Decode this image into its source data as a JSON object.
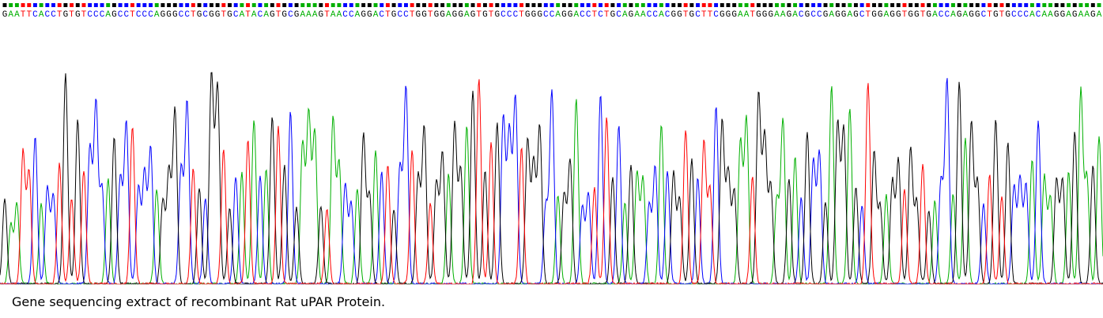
{
  "chart_data": {
    "type": "line",
    "caption": "Gene sequencing extract of recombinant Rat uPAR Protein.",
    "sequence": "GAATTCACCTGTGTCCCAGCCTCCCAGGGCCTGCGGTGCATACAGTGCGAAAGTAACCAGGACTGCCTGGTGGAGGAGTGTGCCCTGGGCCAGGACCTCTGCAGAACCACGGTGCTTCGGGAATGGGAAGACGCCGAGGAGCTGGAGGTGGTGACCAGAGGCTGTGCCCACAAGGAGAAGA",
    "base_colors": {
      "A": "#00b000",
      "C": "#0000ff",
      "G": "#000000",
      "T": "#ff0000"
    },
    "quality_bar_colors": {
      "A": "#00b000",
      "C": "#0000ff",
      "G": "#000000",
      "T": "#ff0000"
    },
    "baseline_noise": true,
    "legend": "none",
    "grid": false
  }
}
